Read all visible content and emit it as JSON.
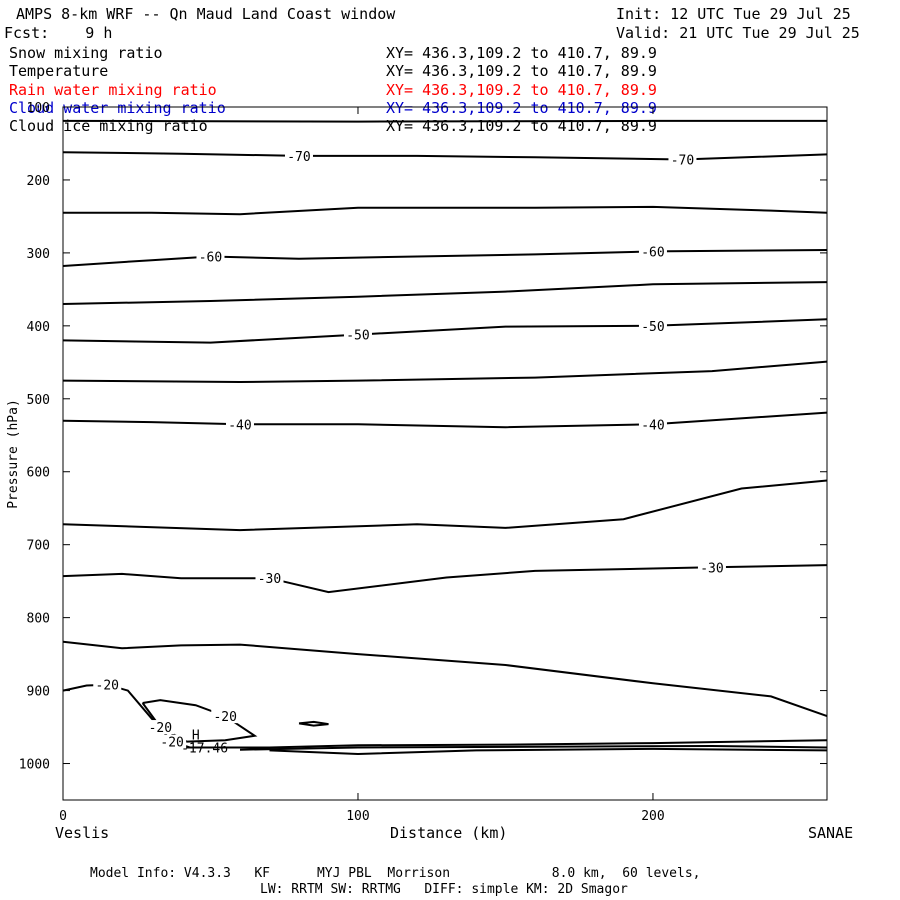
{
  "header": {
    "title": "AMPS 8-km WRF -- Qn Maud Land Coast window",
    "init": "Init: 12 UTC Tue 29 Jul 25",
    "forecast": "Fcst:    9 h",
    "valid": "Valid: 21 UTC Tue 29 Jul 25"
  },
  "legend": [
    {
      "label": "Snow mixing ratio",
      "xy": "XY= 436.3,109.2 to 410.7, 89.9",
      "color": "#000000"
    },
    {
      "label": "Temperature",
      "xy": "XY= 436.3,109.2 to 410.7, 89.9",
      "color": "#000000"
    },
    {
      "label": "Rain water mixing ratio",
      "xy": "XY= 436.3,109.2 to 410.7, 89.9",
      "color": "#ff0000"
    },
    {
      "label": "Cloud water mixing ratio",
      "xy": "XY= 436.3,109.2 to 410.7, 89.9",
      "color": "#0000cc"
    },
    {
      "label": "Cloud ice mixing ratio",
      "xy": "XY= 436.3,109.2 to 410.7, 89.9",
      "color": "#000000"
    }
  ],
  "footer": {
    "line1": "Model Info: V4.3.3   KF      MYJ PBL  Morrison             8.0 km,  60 levels,",
    "line2": "LW: RRTM SW: RRTMG   DIFF: simple KM: 2D Smagor"
  },
  "chart_data": {
    "type": "line",
    "xlabel": "Distance (km)",
    "ylabel": "Pressure (hPa)",
    "xlim": [
      0,
      259
    ],
    "ylim": [
      1050,
      100
    ],
    "x_ticks": [
      0,
      100,
      200
    ],
    "y_ticks": [
      100,
      200,
      300,
      400,
      500,
      600,
      700,
      800,
      900,
      1000
    ],
    "x_start_label": "Veslis",
    "x_end_label": "SANAE",
    "contours": [
      {
        "value": "",
        "points": [
          [
            0,
            119
          ],
          [
            100,
            120
          ],
          [
            200,
            119
          ],
          [
            259,
            119
          ]
        ]
      },
      {
        "value": "-70",
        "points": [
          [
            0,
            162
          ],
          [
            40,
            164
          ],
          [
            80,
            167
          ],
          [
            120,
            167
          ],
          [
            160,
            169
          ],
          [
            210,
            172
          ],
          [
            259,
            165
          ]
        ]
      },
      {
        "value": "",
        "points": [
          [
            0,
            245
          ],
          [
            30,
            245
          ],
          [
            60,
            247
          ],
          [
            100,
            238
          ],
          [
            160,
            238
          ],
          [
            200,
            237
          ],
          [
            240,
            242
          ],
          [
            259,
            245
          ]
        ]
      },
      {
        "value": "-60",
        "points": [
          [
            0,
            318
          ],
          [
            30,
            310
          ],
          [
            50,
            305
          ],
          [
            80,
            308
          ],
          [
            120,
            305
          ],
          [
            160,
            302
          ],
          [
            200,
            298
          ],
          [
            259,
            296
          ]
        ]
      },
      {
        "value": "",
        "points": [
          [
            0,
            370
          ],
          [
            50,
            366
          ],
          [
            100,
            360
          ],
          [
            150,
            353
          ],
          [
            200,
            343
          ],
          [
            259,
            340
          ]
        ]
      },
      {
        "value": "-50",
        "points": [
          [
            0,
            420
          ],
          [
            50,
            423
          ],
          [
            100,
            412
          ],
          [
            150,
            401
          ],
          [
            200,
            400
          ],
          [
            259,
            391
          ]
        ]
      },
      {
        "value": "",
        "points": [
          [
            0,
            475
          ],
          [
            60,
            477
          ],
          [
            100,
            475
          ],
          [
            160,
            471
          ],
          [
            220,
            462
          ],
          [
            259,
            449
          ]
        ]
      },
      {
        "value": "-40",
        "points": [
          [
            0,
            530
          ],
          [
            30,
            532
          ],
          [
            60,
            535
          ],
          [
            100,
            535
          ],
          [
            150,
            539
          ],
          [
            200,
            535
          ],
          [
            259,
            519
          ]
        ]
      },
      {
        "value": "",
        "points": [
          [
            0,
            672
          ],
          [
            60,
            680
          ],
          [
            120,
            672
          ],
          [
            150,
            677
          ],
          [
            190,
            665
          ],
          [
            230,
            623
          ],
          [
            259,
            612
          ]
        ]
      },
      {
        "value": "-30",
        "points": [
          [
            0,
            743
          ],
          [
            20,
            740
          ],
          [
            40,
            746
          ],
          [
            70,
            746
          ],
          [
            90,
            765
          ],
          [
            130,
            745
          ],
          [
            160,
            736
          ],
          [
            220,
            731
          ],
          [
            259,
            728
          ]
        ]
      },
      {
        "value": "",
        "points": [
          [
            0,
            833
          ],
          [
            20,
            842
          ],
          [
            40,
            838
          ],
          [
            60,
            837
          ],
          [
            100,
            850
          ],
          [
            150,
            865
          ],
          [
            200,
            890
          ],
          [
            240,
            908
          ],
          [
            259,
            935
          ]
        ]
      },
      {
        "value": "-20",
        "points": [
          [
            0,
            900
          ],
          [
            8,
            893
          ],
          [
            15,
            892
          ],
          [
            22,
            900
          ],
          [
            30,
            938
          ],
          [
            37,
            970
          ],
          [
            43,
            978
          ]
        ]
      },
      {
        "value": "-20",
        "points": [
          [
            27,
            917
          ],
          [
            33,
            913
          ],
          [
            45,
            920
          ],
          [
            55,
            935
          ],
          [
            65,
            962
          ],
          [
            55,
            968
          ],
          [
            42,
            970
          ],
          [
            33,
            950
          ],
          [
            27,
            917
          ]
        ]
      },
      {
        "value": "",
        "points": [
          [
            80,
            945
          ],
          [
            85,
            943
          ],
          [
            90,
            946
          ],
          [
            85,
            948
          ],
          [
            80,
            945
          ]
        ]
      },
      {
        "value": "",
        "points": [
          [
            40,
            978
          ],
          [
            70,
            978
          ],
          [
            100,
            975
          ],
          [
            150,
            974
          ],
          [
            200,
            972
          ],
          [
            259,
            968
          ]
        ]
      },
      {
        "value": "",
        "points": [
          [
            60,
            981
          ],
          [
            100,
            978
          ],
          [
            160,
            977
          ],
          [
            220,
            976
          ],
          [
            259,
            978
          ]
        ]
      },
      {
        "value": "",
        "points": [
          [
            70,
            982
          ],
          [
            100,
            987
          ],
          [
            140,
            982
          ],
          [
            200,
            980
          ],
          [
            259,
            982
          ]
        ]
      }
    ],
    "annotations": [
      {
        "text": "H",
        "x": 45,
        "y": 960
      },
      {
        "text": "-17.46",
        "x": 48,
        "y": 978
      }
    ]
  }
}
